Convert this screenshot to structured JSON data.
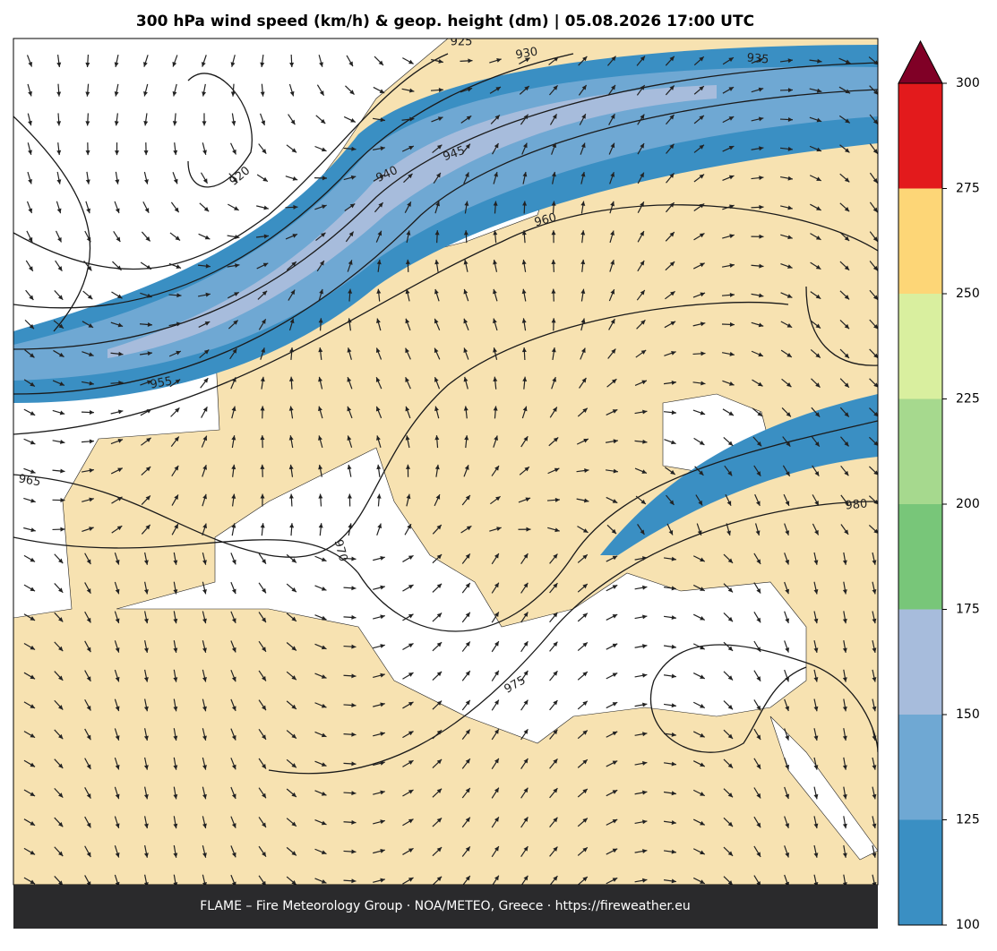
{
  "title": "300 hPa wind speed (km/h) & geop. height (dm)  |  05.08.2026 17:00 UTC",
  "contour_labels": [
    "925",
    "930",
    "935",
    "940",
    "945",
    "960",
    "920",
    "955",
    "965",
    "970",
    "975",
    "980"
  ],
  "colorbar": {
    "ticks": [
      100,
      125,
      150,
      175,
      200,
      225,
      250,
      275,
      300
    ],
    "colors": [
      "#3a8fc3",
      "#6fa8d3",
      "#a7bcdc",
      "#78c679",
      "#a6d98e",
      "#d9ef9f",
      "#fdd677",
      "#e31a1c"
    ],
    "extend_color": "#800026"
  },
  "footer": "FLAME – Fire Meteorology Group · NOA/METEO, Greece · https://fireweather.eu"
}
